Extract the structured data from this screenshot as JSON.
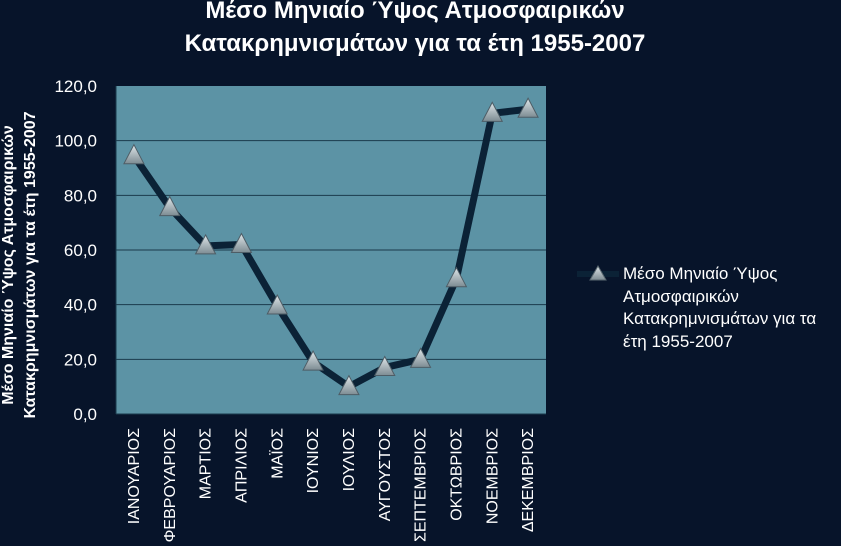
{
  "chart_data": {
    "type": "line",
    "title": [
      "Μέσο Μηνιαίο Ύψος Ατμοσφαιρικών",
      "Κατακρημνισμάτων για τα έτη 1955-2007"
    ],
    "ylabel": [
      "Μέσο Μηνιαίο Ύψος Ατμοσφαιρικών",
      "Κατακρημνισμάτων για τα έτη 1955-2007"
    ],
    "xlabel": "",
    "ylim": [
      0,
      120
    ],
    "yticks": [
      "0,0",
      "20,0",
      "40,0",
      "60,0",
      "80,0",
      "100,0",
      "120,0"
    ],
    "categories": [
      "ΙΑΝΟΥΑΡΙΟΣ",
      "ΦΕΒΡΟΥΑΡΙΟΣ",
      "ΜΑΡΤΙΟΣ",
      "ΑΠΡΙΛΙΟΣ",
      "ΜΑΪΟΣ",
      "ΙΟΥΝΙΟΣ",
      "ΙΟΥΛΙΟΣ",
      "ΑΥΓΟΥΣΤΟΣ",
      "ΣΕΠΤΕΜΒΡΙΟΣ",
      "ΟΚΤΩΒΡΙΟΣ",
      "ΝΟΕΜΒΡΙΟΣ",
      "ΔΕΚΕΜΒΡΙΟΣ"
    ],
    "series": [
      {
        "name": "Μέσο Μηνιαίο Ύψος\nΑτμοσφαιρικών\nΚατακρημνισμάτων για τα\nέτη 1955-2007",
        "values": [
          94.5,
          75.5,
          61.5,
          62.0,
          39.5,
          19.0,
          10.0,
          17.0,
          20.0,
          49.5,
          110.0,
          111.5
        ]
      }
    ],
    "grid": true,
    "legend": "right",
    "colors": {
      "background": "#07142a",
      "plot_area": "#5c93a5",
      "line": "#0b2236",
      "marker": "#b0bcc2",
      "gridline": "#1a3a4c",
      "text": "#ffffff"
    }
  }
}
